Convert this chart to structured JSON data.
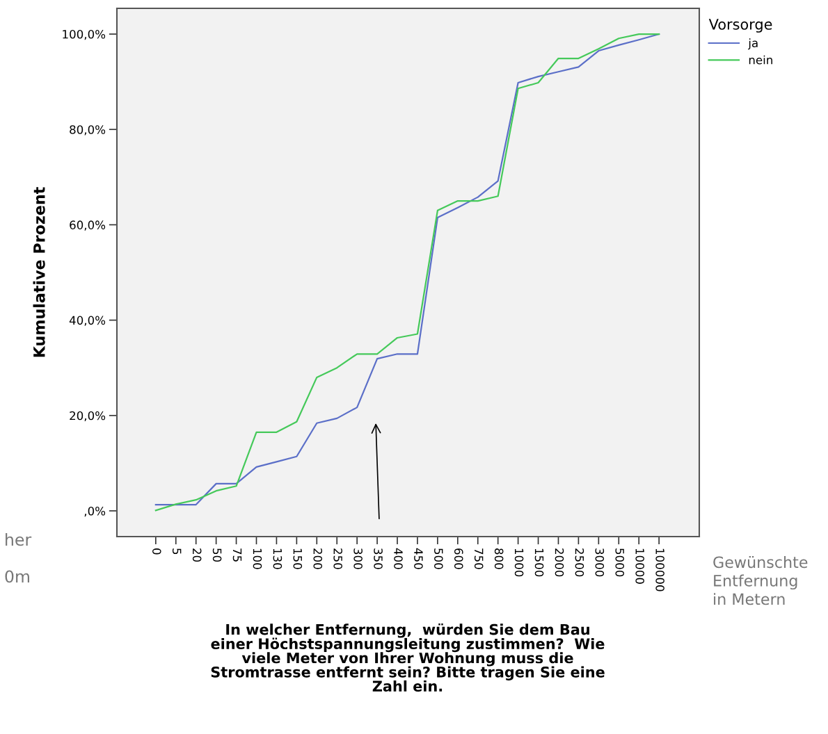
{
  "chart_data": {
    "type": "line",
    "categories": [
      "0",
      "5",
      "20",
      "50",
      "75",
      "100",
      "130",
      "150",
      "200",
      "250",
      "300",
      "350",
      "400",
      "450",
      "500",
      "600",
      "750",
      "800",
      "1000",
      "1500",
      "2000",
      "2500",
      "3000",
      "5000",
      "10000",
      "100000"
    ],
    "series": [
      {
        "name": "ja",
        "color": "#5b6fc8",
        "values": [
          1.3,
          1.3,
          1.3,
          5.7,
          5.7,
          9.2,
          10.3,
          11.4,
          18.4,
          19.4,
          21.7,
          31.9,
          32.9,
          32.9,
          61.5,
          63.6,
          65.8,
          69.2,
          89.8,
          91.1,
          92.1,
          93.1,
          96.5,
          97.7,
          98.8,
          100
        ]
      },
      {
        "name": "nein",
        "color": "#45c95a",
        "values": [
          0.1,
          1.4,
          2.3,
          4.2,
          5.2,
          16.5,
          16.5,
          18.7,
          28.0,
          30.0,
          32.9,
          32.9,
          36.3,
          37.1,
          63.0,
          65.0,
          65.0,
          66.0,
          88.6,
          89.8,
          94.9,
          94.9,
          96.9,
          99.1,
          100,
          100
        ]
      }
    ],
    "ylabel": "Kumulative Prozent",
    "xlabel": "In welcher Entfernung,  würden Sie dem Bau\neiner Höchstspannungsleitung zustimmen?  Wie\nviele Meter von Ihrer Wohnung muss die\nStromtrasse entfernt sein? Bitte tragen Sie eine\nZahl ein.",
    "legend_title": "Vorsorge",
    "legend": "top right",
    "ylim": [
      -5.4,
      105.4
    ],
    "yticks": [
      {
        "value": 0,
        "label": ",0%"
      },
      {
        "value": 20,
        "label": "20,0%"
      },
      {
        "value": 40,
        "label": "40,0%"
      },
      {
        "value": 60,
        "label": "60,0%"
      },
      {
        "value": 80,
        "label": "80,0%"
      },
      {
        "value": 100,
        "label": "100,0%"
      }
    ],
    "grid": false,
    "marker": "none",
    "line_style": "solid",
    "annotations": [
      "Gewünschte\nEntfernung\nin Metern",
      "her",
      "0m"
    ]
  }
}
